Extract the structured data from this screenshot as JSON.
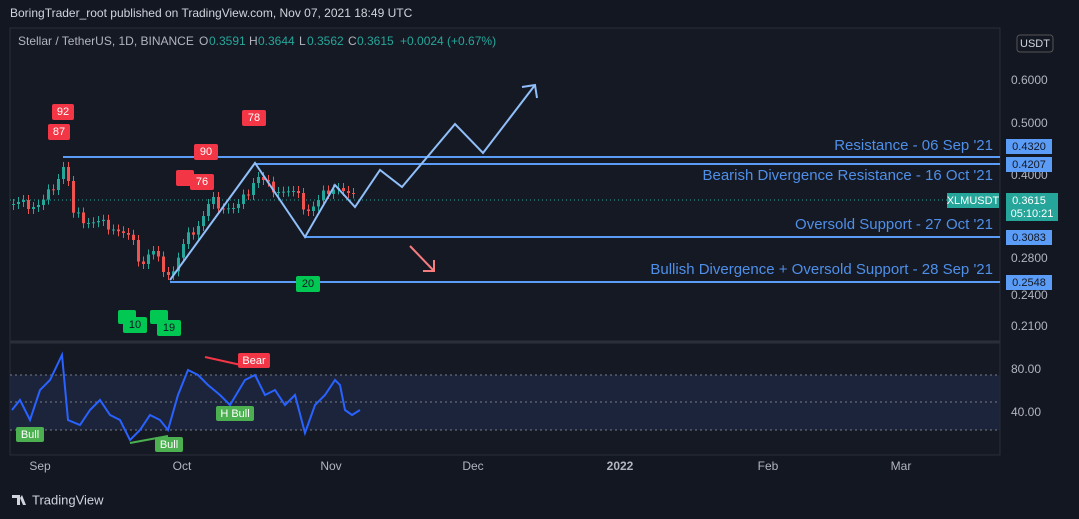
{
  "header": "BoringTrader_root published on TradingView.com, Nov 07, 2021 18:49 UTC",
  "legend": {
    "symbol": "Stellar / TetherUS, 1D, BINANCE",
    "o_label": "O",
    "open": "0.3591",
    "h_label": "H",
    "high": "0.3644",
    "l_label": "L",
    "low": "0.3562",
    "c_label": "C",
    "close": "0.3615",
    "change": "+0.0024 (+0.67%)"
  },
  "price_axis": {
    "currency": "USDT",
    "labels": [
      "0.6000",
      "0.5000",
      "0.4000",
      "0.2800",
      "0.2400",
      "0.2100"
    ]
  },
  "levels": [
    {
      "label": "Resistance - 06 Sep '21",
      "price": "0.4320"
    },
    {
      "label": "Bearish Divergence Resistance - 16 Oct '21",
      "price": "0.4207"
    },
    {
      "label": "Oversold Support - 27 Oct '21",
      "price": "0.3083"
    },
    {
      "label": "Bullish Divergence + Oversold Support - 28 Sep '21",
      "price": "0.2548"
    }
  ],
  "last_price": {
    "symbol": "XLMUSDT",
    "price": "0.3615",
    "countdown": "05:10:21"
  },
  "markers": {
    "red": [
      "92",
      "87",
      "90",
      "76",
      "78"
    ],
    "green": [
      "20",
      "10",
      "19"
    ]
  },
  "rsi": {
    "labels": [
      "80.00",
      "40.00"
    ],
    "signals": [
      "Bull",
      "Bull",
      "H Bull",
      "Bear"
    ]
  },
  "time_axis": [
    "Sep",
    "Oct",
    "Nov",
    "Dec",
    "2022",
    "Feb",
    "Mar"
  ],
  "footer": "TradingView"
}
